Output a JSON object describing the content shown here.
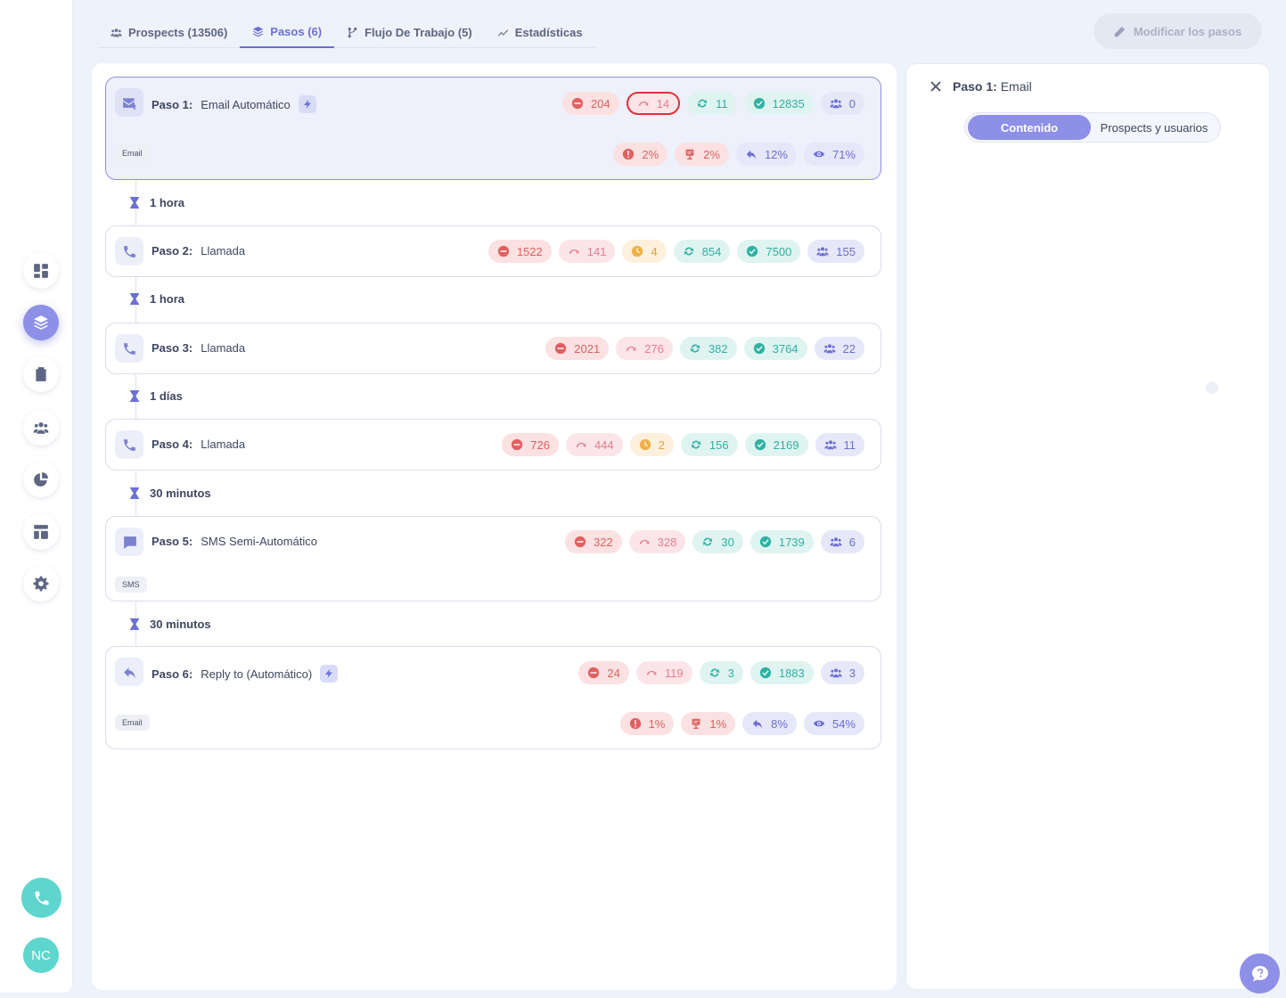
{
  "tabs": [
    {
      "label": "Prospects (13506)",
      "icon": "users-icon"
    },
    {
      "label": "Pasos (6)",
      "icon": "layers-icon"
    },
    {
      "label": "Flujo De Trabajo (5)",
      "icon": "workflow-icon"
    },
    {
      "label": "Estadísticas",
      "icon": "trend-icon"
    }
  ],
  "toolbar": {
    "modify_label": "Modificar los pasos"
  },
  "user": {
    "initials": "NC"
  },
  "steps": [
    {
      "prefix": "Paso 1:",
      "name": "Email Automático",
      "tag": "Email",
      "stats": [
        "204",
        "14",
        "11",
        "12835",
        "0"
      ],
      "rates": [
        "2%",
        "2%",
        "12%",
        "71%"
      ]
    },
    {
      "prefix": "Paso 2:",
      "name": "Llamada",
      "stats": [
        "1522",
        "141",
        "4",
        "854",
        "7500",
        "155"
      ]
    },
    {
      "prefix": "Paso 3:",
      "name": "Llamada",
      "stats": [
        "2021",
        "276",
        "382",
        "3764",
        "22"
      ]
    },
    {
      "prefix": "Paso 4:",
      "name": "Llamada",
      "stats": [
        "726",
        "444",
        "2",
        "156",
        "2169",
        "11"
      ]
    },
    {
      "prefix": "Paso 5:",
      "name": "SMS Semi-Automático",
      "tag": "SMS",
      "stats": [
        "322",
        "328",
        "30",
        "1739",
        "6"
      ]
    },
    {
      "prefix": "Paso 6:",
      "name": "Reply to (Automático)",
      "tag": "Email",
      "stats": [
        "24",
        "119",
        "3",
        "1883",
        "3"
      ],
      "rates": [
        "1%",
        "1%",
        "8%",
        "54%"
      ]
    }
  ],
  "delays": [
    "1 hora",
    "1 hora",
    "1 días",
    "30 minutos",
    "30 minutos"
  ],
  "right_panel": {
    "title_prefix": "Paso 1:",
    "title_name": "Email",
    "segments": [
      "Contenido",
      "Prospects y usuarios"
    ]
  },
  "colors": {
    "accent": "#8e8fe6",
    "teal": "#5ed6cd",
    "alert": "#e0303d"
  }
}
